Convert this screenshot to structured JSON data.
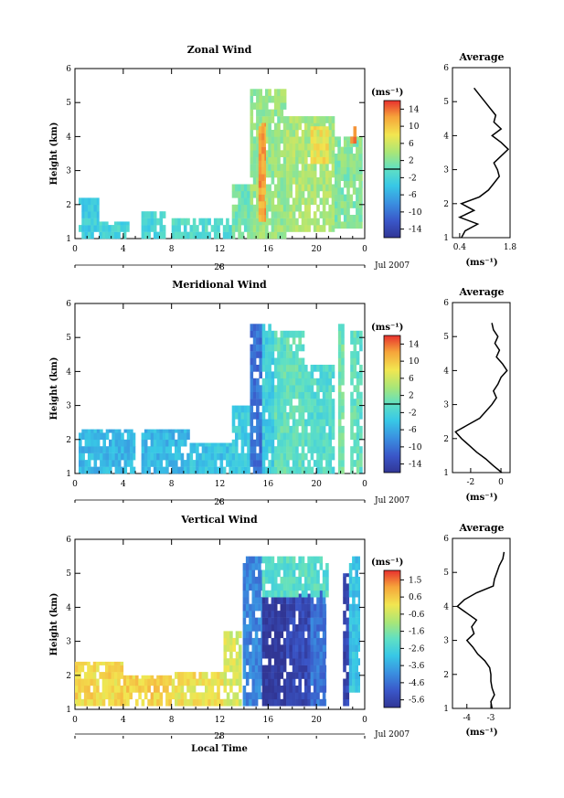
{
  "figure": {
    "date_label": "Jul 2007",
    "day_label": "28",
    "time_axis_title": "Local Time",
    "colorbar_unit": "(ms⁻¹)",
    "avg_unit": "(ms⁻¹)",
    "avg_title": "Average"
  },
  "chart_data": [
    {
      "type": "heatmap",
      "title": "Zonal Wind",
      "xlabel": "",
      "ylabel": "Height (km)",
      "xlim": [
        0,
        24
      ],
      "ylim": [
        1,
        6
      ],
      "x_ticks": [
        "0",
        "4",
        "8",
        "12",
        "16",
        "20",
        "0"
      ],
      "y_ticks": [
        "1",
        "2",
        "3",
        "4",
        "5",
        "6"
      ],
      "colorbar_range": [
        -16,
        16
      ],
      "colorbar_ticks": [
        "14",
        "10",
        "6",
        "2",
        "-2",
        "-6",
        "-10",
        "-14"
      ],
      "colorbar_zero_line": 0,
      "regions": [
        {
          "x": [
            0.3,
            2.0
          ],
          "y": [
            1.0,
            2.2
          ],
          "value": -3
        },
        {
          "x": [
            2.0,
            4.5
          ],
          "y": [
            1.0,
            1.5
          ],
          "value": -2
        },
        {
          "x": [
            5.5,
            7.5
          ],
          "y": [
            1.0,
            1.8
          ],
          "value": -2
        },
        {
          "x": [
            8.0,
            13.0
          ],
          "y": [
            1.0,
            1.6
          ],
          "value": -1
        },
        {
          "x": [
            13.0,
            14.5
          ],
          "y": [
            1.0,
            2.6
          ],
          "value": 1
        },
        {
          "x": [
            14.5,
            17.5
          ],
          "y": [
            1.0,
            5.4
          ],
          "value": 3
        },
        {
          "x": [
            15.2,
            15.8
          ],
          "y": [
            1.5,
            4.4
          ],
          "value": 12
        },
        {
          "x": [
            17.5,
            21.5
          ],
          "y": [
            1.2,
            4.6
          ],
          "value": 4
        },
        {
          "x": [
            19.5,
            21.0
          ],
          "y": [
            3.2,
            4.3
          ],
          "value": 8
        },
        {
          "x": [
            21.5,
            23.8
          ],
          "y": [
            1.3,
            4.0
          ],
          "value": 2
        },
        {
          "x": [
            22.8,
            23.3
          ],
          "y": [
            3.8,
            4.3
          ],
          "value": 13
        }
      ],
      "profile": {
        "title": "Average",
        "xlabel": "(ms⁻¹)",
        "xlim": [
          0.2,
          1.8
        ],
        "x_ticks": [
          "0.4",
          "1.8"
        ],
        "x_tick_values": [
          0.4,
          1.8
        ],
        "y": [
          1.0,
          1.2,
          1.4,
          1.6,
          1.8,
          2.0,
          2.2,
          2.4,
          2.6,
          2.8,
          3.0,
          3.2,
          3.4,
          3.6,
          3.8,
          4.0,
          4.2,
          4.4,
          4.6,
          4.8,
          5.0,
          5.2,
          5.4
        ],
        "x": [
          0.45,
          0.55,
          0.9,
          0.4,
          0.8,
          0.45,
          0.95,
          1.2,
          1.35,
          1.5,
          1.45,
          1.35,
          1.55,
          1.75,
          1.55,
          1.3,
          1.55,
          1.35,
          1.4,
          1.25,
          1.1,
          0.95,
          0.8
        ]
      }
    },
    {
      "type": "heatmap",
      "title": "Meridional Wind",
      "xlabel": "",
      "ylabel": "Height (km)",
      "xlim": [
        0,
        24
      ],
      "ylim": [
        1,
        6
      ],
      "x_ticks": [
        "0",
        "4",
        "8",
        "12",
        "16",
        "20",
        "0"
      ],
      "y_ticks": [
        "1",
        "2",
        "3",
        "4",
        "5",
        "6"
      ],
      "colorbar_range": [
        -16,
        16
      ],
      "colorbar_ticks": [
        "14",
        "10",
        "6",
        "2",
        "-2",
        "-6",
        "-10",
        "-14"
      ],
      "colorbar_zero_line": 0,
      "regions": [
        {
          "x": [
            0.3,
            5.0
          ],
          "y": [
            1.0,
            2.3
          ],
          "value": -5
        },
        {
          "x": [
            5.5,
            9.5
          ],
          "y": [
            1.0,
            2.3
          ],
          "value": -5
        },
        {
          "x": [
            9.5,
            13.0
          ],
          "y": [
            1.0,
            1.9
          ],
          "value": -4
        },
        {
          "x": [
            13.0,
            14.5
          ],
          "y": [
            1.0,
            3.0
          ],
          "value": -3
        },
        {
          "x": [
            14.5,
            15.5
          ],
          "y": [
            1.0,
            5.4
          ],
          "value": -10
        },
        {
          "x": [
            15.5,
            16.5
          ],
          "y": [
            1.0,
            5.4
          ],
          "value": -3
        },
        {
          "x": [
            16.5,
            19.0
          ],
          "y": [
            1.0,
            5.2
          ],
          "value": 0
        },
        {
          "x": [
            19.0,
            21.5
          ],
          "y": [
            1.0,
            4.2
          ],
          "value": -1
        },
        {
          "x": [
            21.8,
            22.3
          ],
          "y": [
            1.0,
            5.4
          ],
          "value": 1
        },
        {
          "x": [
            22.8,
            23.8
          ],
          "y": [
            1.0,
            5.2
          ],
          "value": 0
        }
      ],
      "profile": {
        "title": "Average",
        "xlabel": "(ms⁻¹)",
        "xlim": [
          -3.2,
          0.6
        ],
        "x_ticks": [
          "-2",
          "0"
        ],
        "x_tick_values": [
          -2,
          0
        ],
        "y": [
          1.0,
          1.2,
          1.4,
          1.6,
          1.8,
          2.0,
          2.2,
          2.4,
          2.6,
          2.8,
          3.0,
          3.2,
          3.4,
          3.6,
          3.8,
          4.0,
          4.2,
          4.4,
          4.6,
          4.8,
          5.0,
          5.2,
          5.4
        ],
        "x": [
          0.05,
          -0.5,
          -1.0,
          -1.6,
          -2.1,
          -2.6,
          -3.0,
          -2.2,
          -1.4,
          -1.0,
          -0.6,
          -0.3,
          -0.5,
          -0.2,
          0.0,
          0.4,
          0.1,
          -0.3,
          -0.1,
          -0.4,
          -0.2,
          -0.5,
          -0.6
        ]
      }
    },
    {
      "type": "heatmap",
      "title": "Vertical Wind",
      "xlabel": "Local Time",
      "ylabel": "Height (km)",
      "xlim": [
        0,
        24
      ],
      "ylim": [
        1,
        6
      ],
      "x_ticks": [
        "0",
        "4",
        "8",
        "12",
        "16",
        "20",
        "0"
      ],
      "y_ticks": [
        "1",
        "2",
        "3",
        "4",
        "5",
        "6"
      ],
      "colorbar_range": [
        -6.0,
        2.0
      ],
      "colorbar_ticks": [
        "1.5",
        "0.6",
        "-0.6",
        "-1.6",
        "-2.6",
        "-3.6",
        "-4.6",
        "-5.6"
      ],
      "colorbar_zero_line": null,
      "regions": [
        {
          "x": [
            0.0,
            4.0
          ],
          "y": [
            1.1,
            2.4
          ],
          "value": 0.2
        },
        {
          "x": [
            4.0,
            8.0
          ],
          "y": [
            1.1,
            2.0
          ],
          "value": 0.3
        },
        {
          "x": [
            8.0,
            12.5
          ],
          "y": [
            1.1,
            2.1
          ],
          "value": 0.0
        },
        {
          "x": [
            12.3,
            13.8
          ],
          "y": [
            1.1,
            3.3
          ],
          "value": -0.4
        },
        {
          "x": [
            13.9,
            15.5
          ],
          "y": [
            1.1,
            5.5
          ],
          "value": -4.2
        },
        {
          "x": [
            15.5,
            17.5
          ],
          "y": [
            1.1,
            4.3
          ],
          "value": -5.9
        },
        {
          "x": [
            17.5,
            19.5
          ],
          "y": [
            1.1,
            4.4
          ],
          "value": -5.4
        },
        {
          "x": [
            19.5,
            20.8
          ],
          "y": [
            1.1,
            4.5
          ],
          "value": -4.5
        },
        {
          "x": [
            15.5,
            21.0
          ],
          "y": [
            4.3,
            5.5
          ],
          "value": -2.2
        },
        {
          "x": [
            22.2,
            22.7
          ],
          "y": [
            1.1,
            5.0
          ],
          "value": -5.5
        },
        {
          "x": [
            22.7,
            23.6
          ],
          "y": [
            1.5,
            5.5
          ],
          "value": -3.0
        }
      ],
      "profile": {
        "title": "Average",
        "xlabel": "(ms⁻¹)",
        "xlim": [
          -4.6,
          -2.2
        ],
        "x_ticks": [
          "-4",
          "-3"
        ],
        "x_tick_values": [
          -4,
          -3
        ],
        "y": [
          1.0,
          1.2,
          1.4,
          1.6,
          1.8,
          2.0,
          2.2,
          2.4,
          2.6,
          2.8,
          3.0,
          3.2,
          3.4,
          3.6,
          3.8,
          4.0,
          4.2,
          4.4,
          4.6,
          4.8,
          5.0,
          5.2,
          5.4,
          5.6
        ],
        "x": [
          -2.95,
          -3.0,
          -2.85,
          -2.95,
          -3.0,
          -3.0,
          -3.05,
          -3.25,
          -3.55,
          -3.75,
          -4.0,
          -3.7,
          -3.8,
          -3.6,
          -4.0,
          -4.4,
          -4.1,
          -3.6,
          -2.9,
          -2.85,
          -2.75,
          -2.65,
          -2.5,
          -2.45
        ]
      }
    }
  ]
}
